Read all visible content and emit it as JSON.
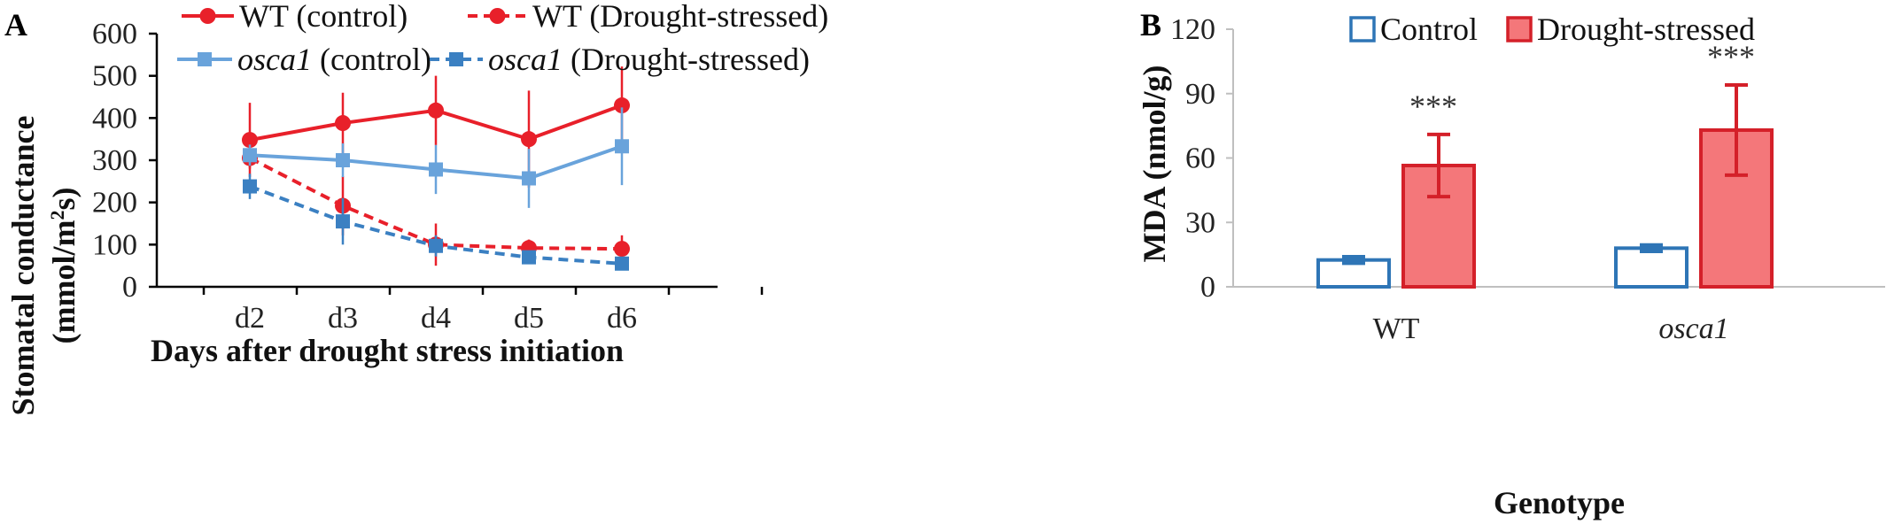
{
  "chart_data": [
    {
      "panel": "A",
      "type": "line",
      "xlabel": "Days after drought stress initiation",
      "ylabel_main": "Stomatal conductance",
      "ylabel_unit_prefix": "(mmol/m",
      "ylabel_unit_sup": "2",
      "ylabel_unit_suffix": "s)",
      "ylim": [
        0,
        600
      ],
      "yticks": [
        "0",
        "100",
        "200",
        "300",
        "400",
        "500",
        "600"
      ],
      "categories": [
        "d2",
        "d3",
        "d4",
        "d5",
        "d6"
      ],
      "series": [
        {
          "name": "WT (control)",
          "name_italic": "",
          "name_rest": "WT (control)",
          "color": "#e8202a",
          "dashed": false,
          "marker": "circle",
          "values": [
            348,
            388,
            418,
            350,
            430
          ],
          "errors": [
            88,
            72,
            82,
            115,
            92
          ]
        },
        {
          "name": "WT (Drought-stressed)",
          "name_italic": "",
          "name_rest": "WT (Drought-stressed)",
          "color": "#e8202a",
          "dashed": true,
          "marker": "circle",
          "values": [
            305,
            192,
            100,
            92,
            90
          ],
          "errors": [
            25,
            70,
            50,
            20,
            32
          ]
        },
        {
          "name": "osca1 (control)",
          "name_italic": "osca1",
          "name_rest": " (control)",
          "color": "#69a3db",
          "dashed": false,
          "marker": "square",
          "values": [
            312,
            300,
            278,
            257,
            333
          ],
          "errors": [
            25,
            40,
            58,
            70,
            92
          ]
        },
        {
          "name": "osca1 (Drought-stressed)",
          "name_italic": "osca1",
          "name_rest": " (Drought-stressed)",
          "color": "#3b80c2",
          "dashed": true,
          "marker": "square",
          "values": [
            238,
            155,
            97,
            70,
            55
          ],
          "errors": [
            30,
            55,
            25,
            15,
            10
          ]
        }
      ]
    },
    {
      "panel": "B",
      "type": "bar",
      "xlabel": "Genotype",
      "ylabel": "MDA (nmol/g)",
      "ylim": [
        0,
        120
      ],
      "yticks": [
        "0",
        "30",
        "60",
        "90",
        "120"
      ],
      "categories": [
        "WT",
        "osca1"
      ],
      "category_italic": [
        false,
        true
      ],
      "series": [
        {
          "name": "Control",
          "fill": "#ffffff",
          "stroke": "#2e75b6",
          "values": [
            12.5,
            18
          ],
          "errors": [
            1.5,
            1.5
          ]
        },
        {
          "name": "Drought-stressed",
          "fill": "#f4777a",
          "stroke": "#d42029",
          "values": [
            56.5,
            73
          ],
          "errors": [
            14.5,
            21
          ]
        }
      ],
      "annotations": [
        "***",
        "***"
      ]
    }
  ]
}
